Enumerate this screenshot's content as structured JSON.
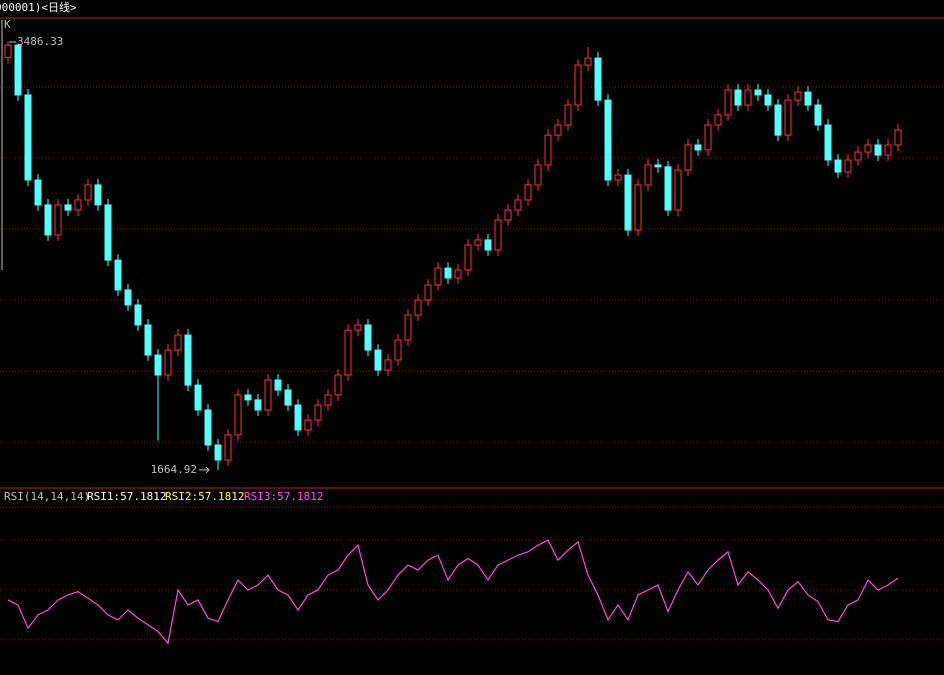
{
  "header": {
    "title": "000001)<日线>"
  },
  "chart_data": [
    {
      "type": "candlestick",
      "label": "K",
      "ylim": [
        1588,
        3580
      ],
      "up_color": "#ff3232",
      "down_color": "#54ffff",
      "max_label": 3486.33,
      "min_label": 1664.92,
      "open": [
        3420,
        3473,
        3261,
        2899,
        2793,
        2665,
        2793,
        2771,
        2814,
        2878,
        2793,
        2558,
        2431,
        2367,
        2282,
        2154,
        2069,
        2175,
        2239,
        2026,
        1920,
        1771,
        1707,
        1814,
        1984,
        1963,
        1920,
        2048,
        2005,
        1941,
        1835,
        1877,
        1941,
        1984,
        2069,
        2260,
        2282,
        2175,
        2090,
        2133,
        2218,
        2324,
        2388,
        2452,
        2524,
        2482,
        2516,
        2622,
        2644,
        2601,
        2729,
        2771,
        2814,
        2878,
        2963,
        3090,
        3133,
        3218,
        3388,
        3418,
        3239,
        2899,
        2920,
        2686,
        2878,
        2963,
        2955,
        2771,
        2941,
        3048,
        3027,
        3133,
        3176,
        3282,
        3218,
        3282,
        3261,
        3218,
        3090,
        3239,
        3273,
        3218,
        3133,
        2984,
        2933,
        2984,
        3018,
        3048,
        3005,
        3048
      ],
      "high": [
        3486.33,
        3480,
        3286,
        2924,
        2818,
        2818,
        2818,
        2839,
        2903,
        2903,
        2818,
        2583,
        2456,
        2392,
        2307,
        2179,
        2200,
        2264,
        2264,
        2051,
        1945,
        1796,
        1839,
        2009,
        2009,
        1988,
        2073,
        2073,
        2030,
        1966,
        1902,
        1966,
        2009,
        2094,
        2285,
        2307,
        2307,
        2200,
        2158,
        2243,
        2349,
        2413,
        2477,
        2549,
        2549,
        2541,
        2647,
        2669,
        2669,
        2754,
        2796,
        2839,
        2903,
        2988,
        3115,
        3158,
        3243,
        3413,
        3465,
        3443,
        3264,
        2945,
        2945,
        2903,
        2988,
        2988,
        2980,
        2966,
        3073,
        3073,
        3158,
        3201,
        3307,
        3307,
        3307,
        3307,
        3286,
        3243,
        3264,
        3298,
        3298,
        3243,
        3158,
        3009,
        3009,
        3043,
        3073,
        3073,
        3073,
        3137
      ],
      "low": [
        3395,
        3236,
        2874,
        2768,
        2640,
        2640,
        2746,
        2746,
        2789,
        2768,
        2533,
        2406,
        2342,
        2257,
        2129,
        1790,
        2044,
        2150,
        2001,
        1895,
        1746,
        1664.92,
        1682,
        1789,
        1938,
        1895,
        1895,
        1980,
        1916,
        1810,
        1810,
        1852,
        1916,
        1959,
        2044,
        2235,
        2150,
        2065,
        2065,
        2108,
        2193,
        2299,
        2363,
        2427,
        2457,
        2457,
        2491,
        2597,
        2576,
        2576,
        2704,
        2746,
        2789,
        2853,
        2938,
        3065,
        3108,
        3193,
        3363,
        3214,
        2874,
        2874,
        2661,
        2661,
        2853,
        2930,
        2746,
        2746,
        2916,
        3002,
        3002,
        3108,
        3151,
        3193,
        3193,
        3236,
        3193,
        3065,
        3065,
        3214,
        3193,
        3108,
        2959,
        2908,
        2908,
        2959,
        2993,
        2980,
        2980,
        3023
      ],
      "close": [
        3473,
        3261,
        2899,
        2793,
        2665,
        2793,
        2771,
        2814,
        2878,
        2793,
        2558,
        2431,
        2367,
        2282,
        2154,
        2069,
        2175,
        2239,
        2026,
        1920,
        1771,
        1707,
        1814,
        1984,
        1963,
        1920,
        2048,
        2005,
        1941,
        1835,
        1877,
        1941,
        1984,
        2069,
        2260,
        2282,
        2175,
        2090,
        2133,
        2218,
        2324,
        2388,
        2452,
        2524,
        2482,
        2516,
        2622,
        2644,
        2601,
        2729,
        2771,
        2814,
        2878,
        2963,
        3090,
        3133,
        3218,
        3388,
        3418,
        3239,
        2899,
        2920,
        2686,
        2878,
        2963,
        2955,
        2771,
        2941,
        3048,
        3027,
        3133,
        3176,
        3282,
        3218,
        3282,
        3261,
        3218,
        3090,
        3239,
        3273,
        3218,
        3133,
        2984,
        2933,
        2984,
        3018,
        3048,
        3005,
        3048,
        3112
      ]
    },
    {
      "type": "line",
      "title": "RSI(14,14,14)",
      "ylim": [
        0,
        100
      ],
      "grid": [
        20,
        50,
        80
      ],
      "color": "#ff4fd8",
      "legend": [
        {
          "name": "RSI1:",
          "value": 57.1812,
          "color": "#ffffff"
        },
        {
          "name": "RSI2:",
          "value": 57.1812,
          "color": "#ffff54"
        },
        {
          "name": "RSI3:",
          "value": 57.1812,
          "color": "#ff54ff"
        }
      ],
      "values": [
        44,
        41,
        27,
        35,
        38,
        44,
        47,
        49,
        45,
        41,
        35,
        32,
        38,
        33,
        29,
        25,
        18,
        50,
        41,
        44,
        33,
        31,
        44,
        56,
        50,
        53,
        59,
        50,
        47,
        38,
        47,
        50,
        59,
        62,
        71,
        77,
        53,
        44,
        50,
        59,
        65,
        62,
        68,
        71,
        56,
        65,
        69,
        65,
        56,
        65,
        68,
        71,
        73,
        77,
        80,
        68,
        74,
        79,
        59,
        47,
        32,
        41,
        32,
        47,
        50,
        53,
        37,
        50,
        61,
        53,
        62,
        68,
        73,
        53,
        61,
        56,
        50,
        39,
        50,
        55,
        47,
        43,
        32,
        31,
        41,
        44,
        56,
        50,
        53,
        57.1812
      ]
    }
  ]
}
